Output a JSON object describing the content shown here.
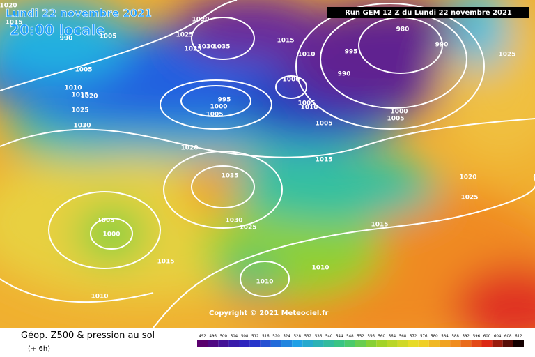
{
  "header": {
    "date": "Lundi 22 novembre 2021",
    "time": "20:00 locale",
    "run": "Run GEM 12 Z du Lundi 22 novembre 2021"
  },
  "copyright": "Copyright © 2021 Meteociel.fr",
  "footer": {
    "title": "Géop. Z500 & pression au sol",
    "step": "(+ 6h)"
  },
  "isobars": [
    1020,
    1015,
    990,
    1005,
    1025,
    1020,
    1025,
    1030,
    1035,
    1015,
    1010,
    995,
    980,
    990,
    990,
    1025,
    1005,
    1010,
    1015,
    1020,
    1025,
    1030,
    995,
    1000,
    1005,
    1000,
    1005,
    1010,
    1005,
    1000,
    1005,
    1020,
    1015,
    1035,
    1020,
    1025,
    1005,
    1000,
    1030,
    1025,
    1015,
    1015,
    1010,
    1010,
    1010
  ],
  "colorbar": [
    492,
    496,
    500,
    504,
    508,
    512,
    516,
    520,
    524,
    528,
    532,
    536,
    540,
    544,
    548,
    552,
    556,
    560,
    564,
    568,
    572,
    576,
    580,
    584,
    588,
    592,
    596,
    600,
    604,
    608,
    612
  ]
}
